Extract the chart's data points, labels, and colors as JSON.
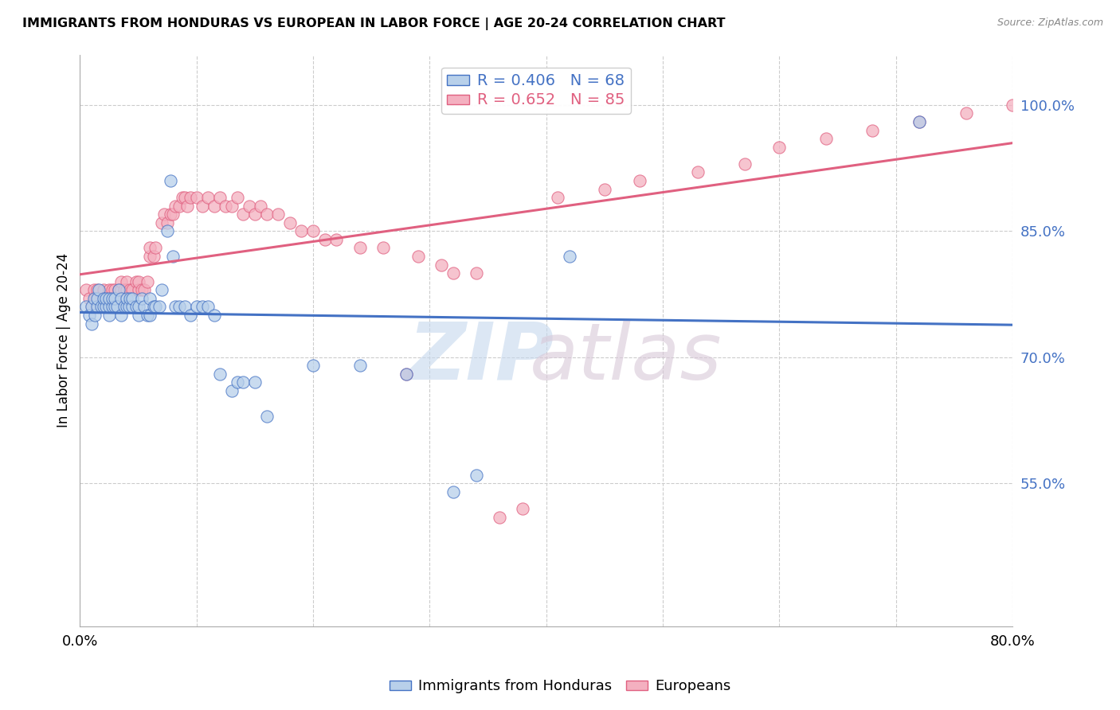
{
  "title": "IMMIGRANTS FROM HONDURAS VS EUROPEAN IN LABOR FORCE | AGE 20-24 CORRELATION CHART",
  "source": "Source: ZipAtlas.com",
  "ylabel": "In Labor Force | Age 20-24",
  "xlim": [
    0.0,
    0.8
  ],
  "ylim": [
    0.38,
    1.06
  ],
  "xticks": [
    0.0,
    0.1,
    0.2,
    0.3,
    0.4,
    0.5,
    0.6,
    0.7,
    0.8
  ],
  "yticks": [
    0.55,
    0.7,
    0.85,
    1.0
  ],
  "ytick_labels": [
    "55.0%",
    "70.0%",
    "85.0%",
    "100.0%"
  ],
  "blue_R": 0.406,
  "blue_N": 68,
  "pink_R": 0.652,
  "pink_N": 85,
  "legend_label_blue": "Immigrants from Honduras",
  "legend_label_pink": "Europeans",
  "blue_color": "#b8d0ea",
  "pink_color": "#f4b0c0",
  "blue_line_color": "#4472c4",
  "pink_line_color": "#e06080",
  "blue_x": [
    0.005,
    0.008,
    0.01,
    0.01,
    0.012,
    0.013,
    0.015,
    0.015,
    0.016,
    0.018,
    0.02,
    0.02,
    0.022,
    0.022,
    0.025,
    0.025,
    0.025,
    0.028,
    0.028,
    0.03,
    0.03,
    0.032,
    0.033,
    0.035,
    0.035,
    0.038,
    0.04,
    0.04,
    0.042,
    0.043,
    0.045,
    0.045,
    0.048,
    0.05,
    0.05,
    0.053,
    0.055,
    0.058,
    0.06,
    0.06,
    0.063,
    0.065,
    0.068,
    0.07,
    0.075,
    0.078,
    0.08,
    0.082,
    0.085,
    0.09,
    0.095,
    0.1,
    0.105,
    0.11,
    0.115,
    0.12,
    0.13,
    0.135,
    0.14,
    0.15,
    0.16,
    0.2,
    0.24,
    0.28,
    0.32,
    0.34,
    0.42,
    0.72
  ],
  "blue_y": [
    0.76,
    0.75,
    0.74,
    0.76,
    0.77,
    0.75,
    0.76,
    0.77,
    0.78,
    0.76,
    0.76,
    0.77,
    0.76,
    0.77,
    0.75,
    0.76,
    0.77,
    0.76,
    0.77,
    0.76,
    0.77,
    0.76,
    0.78,
    0.75,
    0.77,
    0.76,
    0.76,
    0.77,
    0.76,
    0.77,
    0.76,
    0.77,
    0.76,
    0.75,
    0.76,
    0.77,
    0.76,
    0.75,
    0.75,
    0.77,
    0.76,
    0.76,
    0.76,
    0.78,
    0.85,
    0.91,
    0.82,
    0.76,
    0.76,
    0.76,
    0.75,
    0.76,
    0.76,
    0.76,
    0.75,
    0.68,
    0.66,
    0.67,
    0.67,
    0.67,
    0.63,
    0.69,
    0.69,
    0.68,
    0.54,
    0.56,
    0.82,
    0.98
  ],
  "pink_x": [
    0.005,
    0.008,
    0.01,
    0.012,
    0.013,
    0.015,
    0.015,
    0.018,
    0.02,
    0.02,
    0.022,
    0.025,
    0.025,
    0.028,
    0.03,
    0.03,
    0.033,
    0.035,
    0.035,
    0.038,
    0.04,
    0.04,
    0.043,
    0.045,
    0.048,
    0.05,
    0.05,
    0.053,
    0.055,
    0.058,
    0.06,
    0.06,
    0.063,
    0.065,
    0.07,
    0.072,
    0.075,
    0.078,
    0.08,
    0.082,
    0.085,
    0.088,
    0.09,
    0.092,
    0.095,
    0.1,
    0.105,
    0.11,
    0.115,
    0.12,
    0.125,
    0.13,
    0.135,
    0.14,
    0.145,
    0.15,
    0.155,
    0.16,
    0.17,
    0.18,
    0.19,
    0.2,
    0.21,
    0.22,
    0.24,
    0.26,
    0.28,
    0.29,
    0.31,
    0.32,
    0.34,
    0.36,
    0.38,
    0.41,
    0.45,
    0.48,
    0.53,
    0.57,
    0.6,
    0.64,
    0.68,
    0.72,
    0.76,
    0.8,
    0.84
  ],
  "pink_y": [
    0.78,
    0.77,
    0.76,
    0.78,
    0.77,
    0.76,
    0.78,
    0.77,
    0.77,
    0.78,
    0.77,
    0.78,
    0.77,
    0.78,
    0.77,
    0.78,
    0.78,
    0.78,
    0.79,
    0.78,
    0.78,
    0.79,
    0.78,
    0.78,
    0.79,
    0.78,
    0.79,
    0.78,
    0.78,
    0.79,
    0.82,
    0.83,
    0.82,
    0.83,
    0.86,
    0.87,
    0.86,
    0.87,
    0.87,
    0.88,
    0.88,
    0.89,
    0.89,
    0.88,
    0.89,
    0.89,
    0.88,
    0.89,
    0.88,
    0.89,
    0.88,
    0.88,
    0.89,
    0.87,
    0.88,
    0.87,
    0.88,
    0.87,
    0.87,
    0.86,
    0.85,
    0.85,
    0.84,
    0.84,
    0.83,
    0.83,
    0.68,
    0.82,
    0.81,
    0.8,
    0.8,
    0.51,
    0.52,
    0.89,
    0.9,
    0.91,
    0.92,
    0.93,
    0.95,
    0.96,
    0.97,
    0.98,
    0.99,
    1.0,
    1.0
  ]
}
